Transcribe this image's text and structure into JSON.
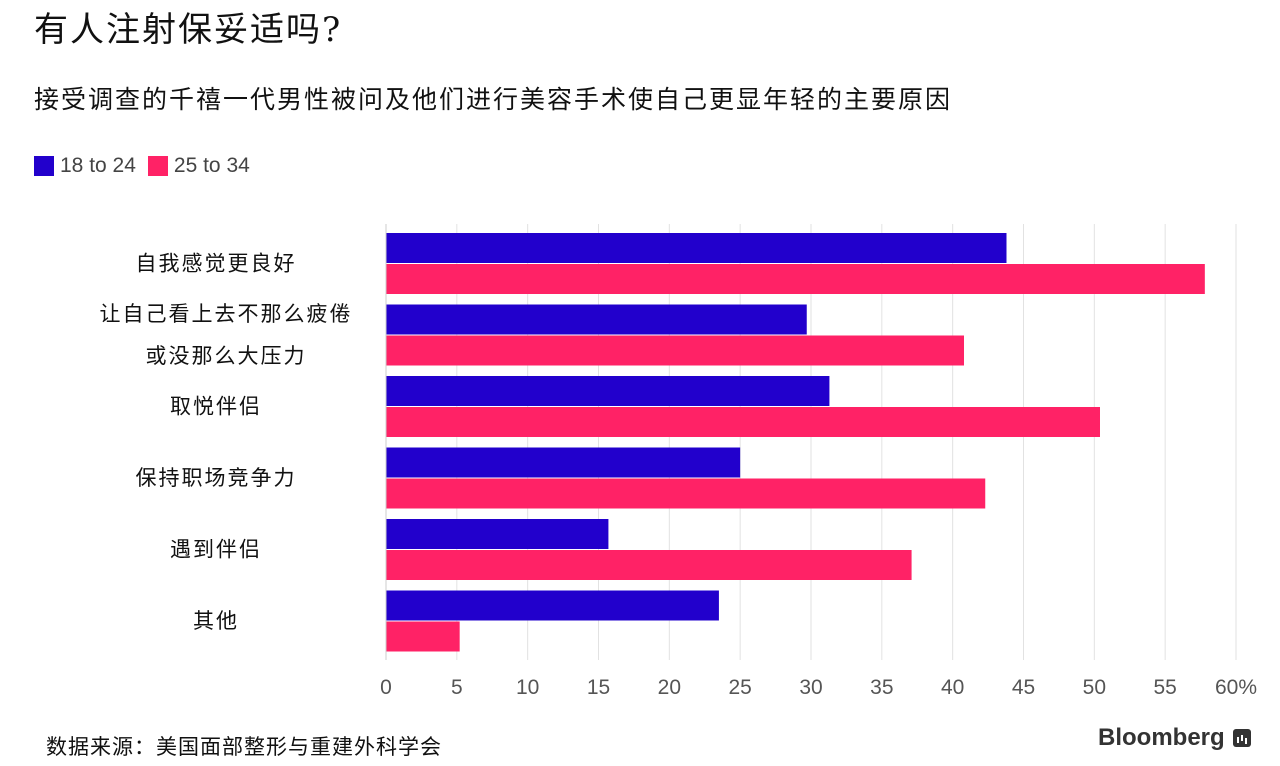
{
  "headline": "有人注射保妥适吗?",
  "source": "数据来源：美国面部整形与重建外科学会",
  "brand": {
    "name": "Bloomberg",
    "icon": "bloomberg-chart-icon"
  },
  "colors": {
    "series_18_24": "#2200cc",
    "series_25_34": "#ff2266",
    "grid": "#e2e2e2",
    "axis_text": "#555555"
  },
  "chart_data": {
    "type": "bar",
    "orientation": "horizontal",
    "title": "接受调查的千禧一代男性被问及他们进行美容手术使自己更显年轻的主要原因",
    "categories": [
      [
        "自我感觉更良好"
      ],
      [
        "让自己看上去不那么疲倦",
        "或没那么大压力"
      ],
      [
        "取悦伴侣"
      ],
      [
        "保持职场竞争力"
      ],
      [
        "遇到伴侣"
      ],
      [
        "其他"
      ]
    ],
    "series": [
      {
        "name": "18 to 24",
        "color": "#2200cc",
        "values": [
          43.8,
          29.7,
          31.3,
          25.0,
          15.7,
          23.5
        ]
      },
      {
        "name": "25 to 34",
        "color": "#ff2266",
        "values": [
          57.8,
          40.8,
          50.4,
          42.3,
          37.1,
          5.2
        ]
      }
    ],
    "xlim": [
      0,
      60
    ],
    "xticks": [
      "0",
      "5",
      "10",
      "15",
      "20",
      "25",
      "30",
      "35",
      "40",
      "45",
      "50",
      "55",
      "60%"
    ],
    "xtick_values": [
      0,
      5,
      10,
      15,
      20,
      25,
      30,
      35,
      40,
      45,
      50,
      55,
      60
    ],
    "grid": true,
    "legend_position": "top-left"
  }
}
